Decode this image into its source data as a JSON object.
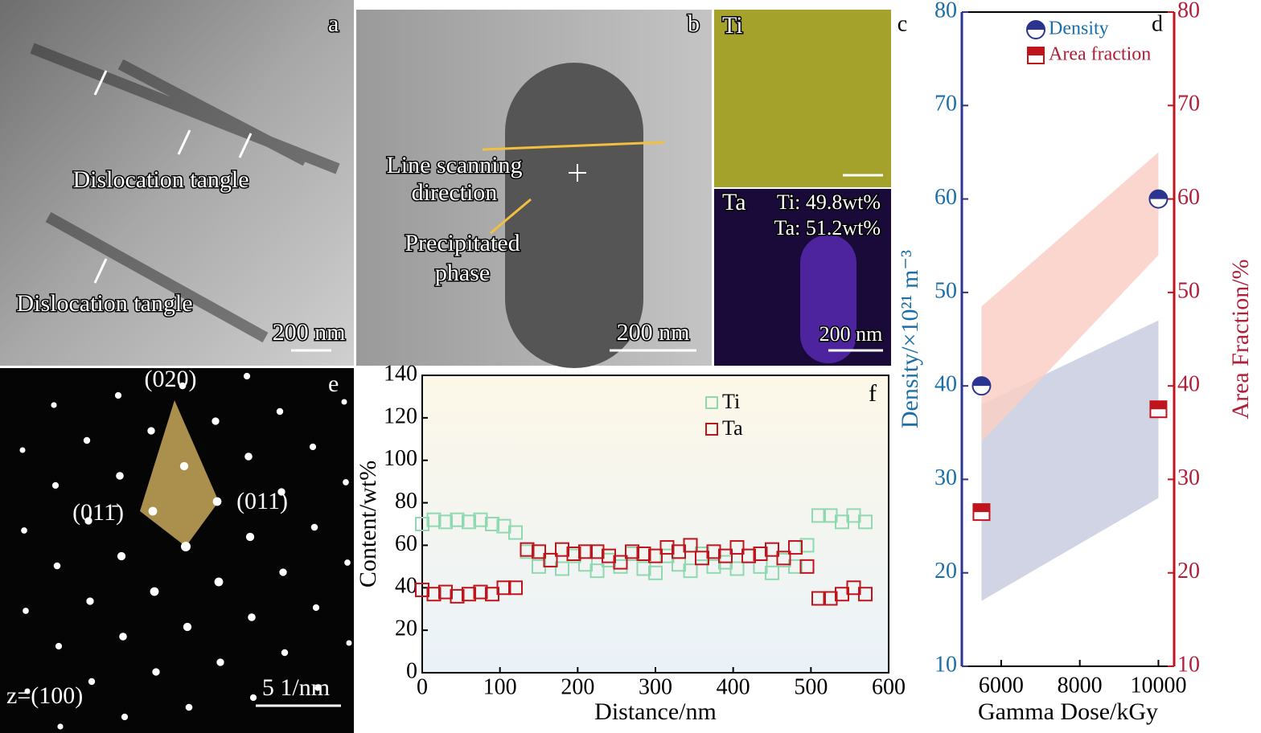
{
  "micrographs": {
    "a": {
      "label": "a",
      "tangle_1": "Dislocation tangle",
      "tangle_2": "Dislocation tangle",
      "scale": "200 nm"
    },
    "b": {
      "label": "b",
      "scan_1": "Line scanning",
      "scan_2": "direction",
      "phase_1": "Precipitated",
      "phase_2": "phase",
      "scale": "200 nm"
    },
    "c": {
      "label": "c",
      "ti": "Ti",
      "ta": "Ta",
      "ti_content": "Ti: 49.8wt%",
      "ta_content": "Ta: 51.2wt%",
      "scale": "200 nm"
    },
    "e": {
      "label": "e",
      "spot_020": "(020)",
      "spot_011": "(011)",
      "spot_01m1": "(011̄)",
      "zone": "z=(100)",
      "scale": "5 1/nm"
    }
  },
  "chart_data": [
    {
      "type": "scatter",
      "label": "f",
      "xlabel": "Distance/nm",
      "ylabel": "Content/wt%",
      "xlim": [
        0,
        600
      ],
      "xticks": [
        0,
        100,
        200,
        300,
        400,
        500,
        600
      ],
      "ylim": [
        0,
        140
      ],
      "yticks": [
        0,
        20,
        40,
        60,
        80,
        100,
        120,
        140
      ],
      "x": [
        0,
        15,
        30,
        45,
        60,
        75,
        90,
        105,
        120,
        135,
        150,
        165,
        180,
        195,
        210,
        225,
        240,
        255,
        270,
        285,
        300,
        315,
        330,
        345,
        360,
        375,
        390,
        405,
        420,
        435,
        450,
        465,
        480,
        495,
        510,
        525,
        540,
        555,
        570
      ],
      "series": [
        {
          "name": "Ti",
          "color": "#8fd9b0",
          "values": [
            70,
            72,
            71,
            72,
            71,
            72,
            70,
            69,
            66,
            57,
            50,
            53,
            49,
            55,
            51,
            48,
            53,
            50,
            56,
            49,
            47,
            55,
            51,
            48,
            56,
            50,
            52,
            49,
            55,
            50,
            47,
            53,
            50,
            60,
            74,
            74,
            71,
            74,
            71
          ]
        },
        {
          "name": "Ta",
          "color": "#c0141c",
          "values": [
            39,
            37,
            38,
            36,
            37,
            38,
            37,
            40,
            40,
            58,
            57,
            53,
            58,
            56,
            57,
            57,
            55,
            52,
            57,
            56,
            55,
            59,
            57,
            60,
            54,
            57,
            55,
            59,
            55,
            56,
            58,
            54,
            59,
            50,
            35,
            35,
            37,
            40,
            37
          ]
        }
      ]
    },
    {
      "type": "dual",
      "label": "c",
      "label2": "d",
      "xlabel": "Gamma Dose/kGy",
      "ylabel": "Density/×10²¹ m⁻³",
      "y2label": "Area Fraction/%",
      "xlim": [
        5000,
        10400
      ],
      "xticks": [
        6000,
        8000,
        10000
      ],
      "ylim": [
        10,
        80
      ],
      "yticks": [
        10,
        20,
        30,
        40,
        50,
        60,
        70,
        80
      ],
      "y2lim": [
        10,
        80
      ],
      "y2ticks": [
        10,
        20,
        30,
        40,
        50,
        60,
        70,
        80
      ],
      "x": [
        5500,
        10000
      ],
      "series": [
        {
          "name": "Density",
          "color": "#2b3590",
          "band_color": "#c9cce0",
          "values": [
            40,
            60
          ],
          "band_low": [
            17,
            28
          ],
          "band_high": [
            38,
            47
          ]
        },
        {
          "name": "Area fraction",
          "axis": "y2",
          "color": "#c0141c",
          "band_color": "#f9cfc5",
          "values": [
            26.5,
            37.5
          ],
          "band_low": [
            34,
            54
          ],
          "band_high": [
            48.5,
            65
          ]
        }
      ]
    }
  ]
}
